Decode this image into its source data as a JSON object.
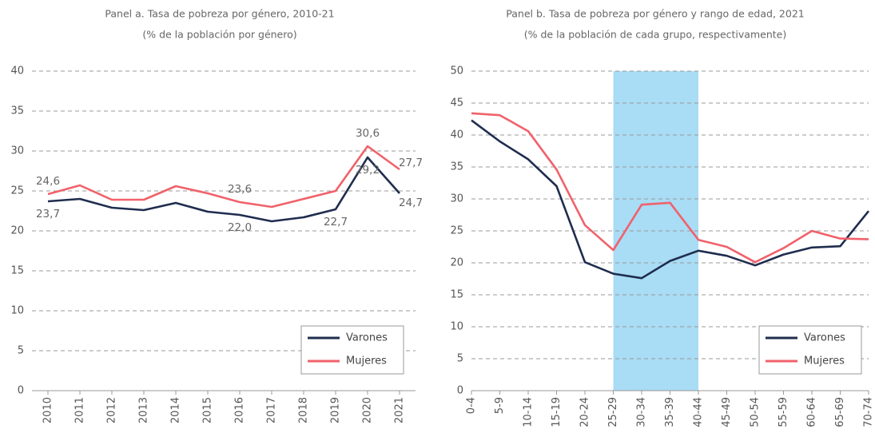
{
  "chart_data": [
    {
      "type": "line",
      "title": "Panel a. Tasa de pobreza por género, 2010-21",
      "subtitle": "(% de la población por género)",
      "categories": [
        "2010",
        "2011",
        "2012",
        "2013",
        "2014",
        "2015",
        "2016",
        "2017",
        "2018",
        "2019",
        "2020",
        "2021"
      ],
      "series": [
        {
          "name": "Varones",
          "color": "#1f2d4e",
          "values": [
            23.7,
            24.0,
            22.9,
            22.6,
            23.5,
            22.4,
            22.0,
            21.2,
            21.7,
            22.7,
            29.2,
            24.7
          ],
          "value_labels": [
            "23,7",
            null,
            null,
            null,
            null,
            null,
            "22,0",
            null,
            null,
            "22,7",
            "29,2",
            "24,7"
          ]
        },
        {
          "name": "Mujeres",
          "color": "#f0626b",
          "values": [
            24.6,
            25.7,
            23.9,
            23.9,
            25.6,
            24.7,
            23.6,
            23.0,
            24.0,
            25.0,
            30.6,
            27.7
          ],
          "value_labels": [
            "24,6",
            null,
            null,
            null,
            null,
            null,
            "23,6",
            null,
            null,
            null,
            "30,6",
            "27,7"
          ]
        }
      ],
      "ylim": [
        0,
        40
      ],
      "yticks": [
        0,
        5,
        10,
        15,
        20,
        25,
        30,
        35,
        40
      ],
      "grid": true,
      "legend": "lower right"
    },
    {
      "type": "line",
      "title": "Panel b. Tasa de pobreza por género y rango de edad, 2021",
      "subtitle": "(% de la población de cada grupo, respectivamente)",
      "categories": [
        "0-4",
        "5-9",
        "10-14",
        "15-19",
        "20-24",
        "25-29",
        "30-34",
        "35-39",
        "40-44",
        "45-49",
        "50-54",
        "55-59",
        "60-64",
        "65-69",
        "70-74"
      ],
      "series": [
        {
          "name": "Varones",
          "color": "#1f2d4e",
          "values": [
            42.3,
            39.0,
            36.2,
            32.0,
            20.1,
            18.3,
            17.6,
            20.3,
            21.9,
            21.1,
            19.6,
            21.3,
            22.4,
            22.6,
            28.1
          ]
        },
        {
          "name": "Mujeres",
          "color": "#f0626b",
          "values": [
            43.4,
            43.1,
            40.6,
            34.6,
            25.9,
            22.0,
            29.1,
            29.4,
            23.6,
            22.5,
            20.1,
            22.3,
            25.0,
            23.8,
            23.7
          ]
        }
      ],
      "highlight": [
        5,
        8
      ],
      "highlight_color": "#a9dcf5",
      "ylim": [
        0,
        50
      ],
      "yticks": [
        0,
        5,
        10,
        15,
        20,
        25,
        30,
        35,
        40,
        45,
        50
      ],
      "grid": true,
      "legend": "lower right"
    }
  ]
}
